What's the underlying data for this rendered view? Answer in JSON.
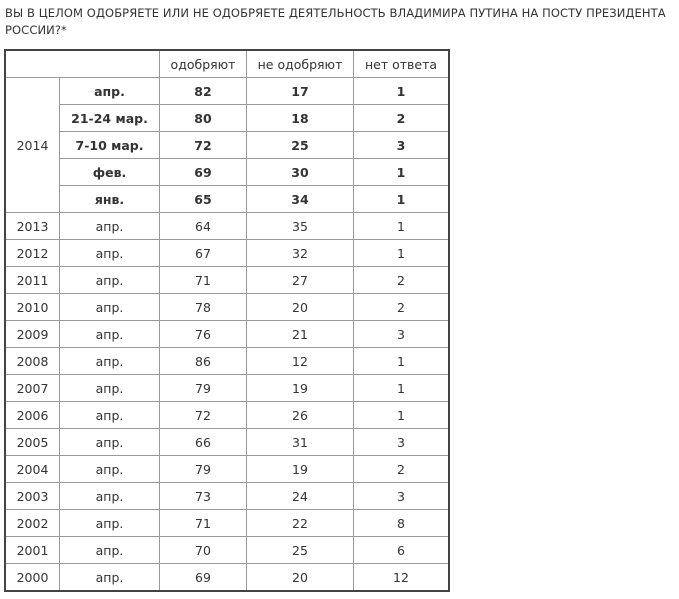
{
  "title": "ВЫ В ЦЕЛОМ ОДОБРЯЕТЕ ИЛИ НЕ ОДОБРЯЕТЕ ДЕЯТЕЛЬНОСТЬ ВЛАДИМИРА ПУТИНА НА ПОСТУ ПРЕЗИДЕНТА РОССИИ?*",
  "table": {
    "headers": [
      "",
      "одобряют",
      "не одобряют",
      "нет ответа"
    ],
    "group_2014": {
      "year": "2014",
      "rows": [
        {
          "period": "апр.",
          "approve": "82",
          "disapprove": "17",
          "no_answer": "1"
        },
        {
          "period": "21-24 мар.",
          "approve": "80",
          "disapprove": "18",
          "no_answer": "2"
        },
        {
          "period": "7-10 мар.",
          "approve": "72",
          "disapprove": "25",
          "no_answer": "3"
        },
        {
          "period": "фев.",
          "approve": "69",
          "disapprove": "30",
          "no_answer": "1"
        },
        {
          "period": "янв.",
          "approve": "65",
          "disapprove": "34",
          "no_answer": "1"
        }
      ]
    },
    "rows": [
      {
        "year": "2013",
        "period": "апр.",
        "approve": "64",
        "disapprove": "35",
        "no_answer": "1"
      },
      {
        "year": "2012",
        "period": "апр.",
        "approve": "67",
        "disapprove": "32",
        "no_answer": "1"
      },
      {
        "year": "2011",
        "period": "апр.",
        "approve": "71",
        "disapprove": "27",
        "no_answer": "2"
      },
      {
        "year": "2010",
        "period": "апр.",
        "approve": "78",
        "disapprove": "20",
        "no_answer": "2"
      },
      {
        "year": "2009",
        "period": "апр.",
        "approve": "76",
        "disapprove": "21",
        "no_answer": "3"
      },
      {
        "year": "2008",
        "period": "апр.",
        "approve": "86",
        "disapprove": "12",
        "no_answer": "1"
      },
      {
        "year": "2007",
        "period": "апр.",
        "approve": "79",
        "disapprove": "19",
        "no_answer": "1"
      },
      {
        "year": "2006",
        "period": "апр.",
        "approve": "72",
        "disapprove": "26",
        "no_answer": "1"
      },
      {
        "year": "2005",
        "period": "апр.",
        "approve": "66",
        "disapprove": "31",
        "no_answer": "3"
      },
      {
        "year": "2004",
        "period": "апр.",
        "approve": "79",
        "disapprove": "19",
        "no_answer": "2"
      },
      {
        "year": "2003",
        "period": "апр.",
        "approve": "73",
        "disapprove": "24",
        "no_answer": "3"
      },
      {
        "year": "2002",
        "period": "апр.",
        "approve": "71",
        "disapprove": "22",
        "no_answer": "8"
      },
      {
        "year": "2001",
        "period": "апр.",
        "approve": "70",
        "disapprove": "25",
        "no_answer": "6"
      },
      {
        "year": "2000",
        "period": "апр.",
        "approve": "69",
        "disapprove": "20",
        "no_answer": "12"
      }
    ]
  }
}
